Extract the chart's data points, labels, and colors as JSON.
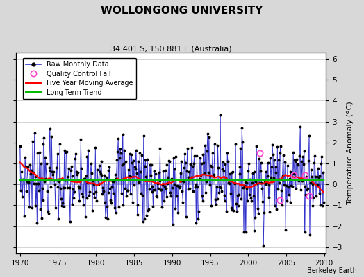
{
  "title": "WOLLONGONG UNIVERSITY",
  "subtitle": "34.401 S, 150.881 E (Australia)",
  "ylabel": "Temperature Anomaly (°C)",
  "credit": "Berkeley Earth",
  "xlim": [
    1969.5,
    2010.2
  ],
  "ylim": [
    -3.3,
    6.3
  ],
  "yticks": [
    -3,
    -2,
    -1,
    0,
    1,
    2,
    3,
    4,
    5,
    6
  ],
  "xticks": [
    1970,
    1975,
    1980,
    1985,
    1990,
    1995,
    2000,
    2005,
    2010
  ],
  "bg_color": "#d8d8d8",
  "plot_bg_color": "#ffffff",
  "raw_line_color": "#3333cc",
  "raw_fill_color": "#aaaaee",
  "raw_marker_color": "#000000",
  "qc_fail_color": "#ff44cc",
  "moving_avg_color": "#ff0000",
  "trend_color": "#00bb00",
  "grid_color": "#cccccc",
  "seed": 7
}
